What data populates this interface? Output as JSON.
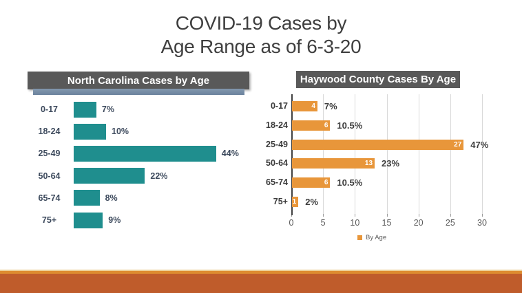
{
  "slide": {
    "title_line1": "COVID-19 Cases by",
    "title_line2": "Age Range as of 6-3-20"
  },
  "colors": {
    "teal_bar": "#1f8e8e",
    "orange_bar": "#e8963a",
    "header_bg": "#595959",
    "header_text": "#ffffff",
    "accent_strip_blue": "#7a8ea6",
    "label_navy": "#3d4a5d",
    "axis_text_gray": "#595959",
    "gridline": "#d9d9d9",
    "footer_gold": "#dd8c30",
    "footer_rust": "#bf5c2b",
    "title_text": "#3f3f3f"
  },
  "chart_data": [
    {
      "type": "bar",
      "orientation": "horizontal",
      "title": "North Carolina Cases by Age",
      "categories": [
        "0-17",
        "18-24",
        "25-49",
        "50-64",
        "65-74",
        "75+"
      ],
      "values": [
        7,
        10,
        44,
        22,
        8,
        9
      ],
      "value_labels": [
        "7%",
        "10%",
        "44%",
        "22%",
        "8%",
        "9%"
      ],
      "unit": "percent of cases",
      "xlim": [
        0,
        47
      ],
      "grid": false,
      "legend": null,
      "bar_color": "#1f8e8e"
    },
    {
      "type": "bar",
      "orientation": "horizontal",
      "title": "Haywood County Cases By Age",
      "categories": [
        "0-17",
        "18-24",
        "25-49",
        "50-64",
        "65-74",
        "75+"
      ],
      "series": [
        {
          "name": "By Age",
          "values": [
            4,
            6,
            27,
            13,
            6,
            1
          ]
        }
      ],
      "bar_count_labels": [
        "4",
        "6",
        "27",
        "13",
        "6",
        "1"
      ],
      "percent_labels": [
        "7%",
        "10.5%",
        "47%",
        "23%",
        "10.5%",
        "2%"
      ],
      "xlim": [
        0,
        30
      ],
      "xticks": [
        0,
        5,
        10,
        15,
        20,
        25,
        30
      ],
      "grid": true,
      "legend": {
        "label": "By Age",
        "position": "bottom"
      },
      "bar_color": "#e8963a"
    }
  ]
}
